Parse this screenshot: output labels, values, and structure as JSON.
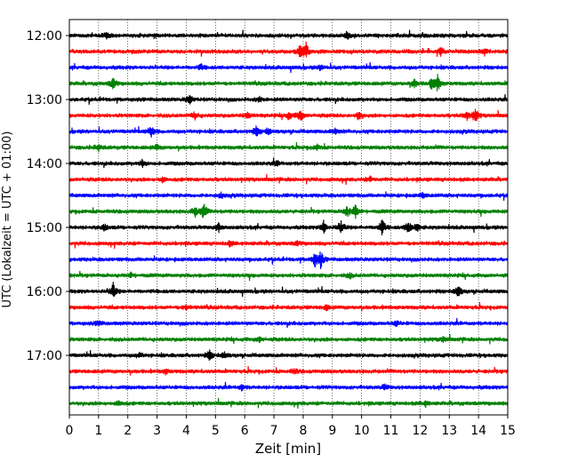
{
  "chart_data": {
    "type": "line",
    "title": "",
    "xlabel": "Zeit  [min]",
    "ylabel": "UTC (Lokalzeit = UTC + 01:00)",
    "xlim": [
      0,
      15
    ],
    "x_ticks": [
      "0",
      "1",
      "2",
      "3",
      "4",
      "5",
      "6",
      "7",
      "8",
      "9",
      "10",
      "11",
      "12",
      "13",
      "14",
      "15"
    ],
    "y_tick_labels": [
      "12:00",
      "13:00",
      "14:00",
      "15:00",
      "16:00",
      "17:00"
    ],
    "grid": "vertical dotted",
    "trace_interval_minutes": 15,
    "colors": [
      "#000000",
      "#ff0000",
      "#0000ff",
      "#008000"
    ],
    "series": [
      {
        "start": "12:00",
        "color": "#000000",
        "events": [
          [
            1.3,
            0.4
          ],
          [
            9.5,
            0.5
          ]
        ]
      },
      {
        "start": "12:15",
        "color": "#ff0000",
        "events": [
          [
            7.9,
            0.7
          ],
          [
            8.1,
            1.0
          ],
          [
            12.7,
            0.5
          ],
          [
            14.2,
            0.4
          ]
        ]
      },
      {
        "start": "12:30",
        "color": "#0000ff",
        "events": [
          [
            4.5,
            0.3
          ],
          [
            8.6,
            0.3
          ]
        ]
      },
      {
        "start": "12:45",
        "color": "#008000",
        "events": [
          [
            1.5,
            0.8
          ],
          [
            11.8,
            0.5
          ],
          [
            12.6,
            1.0
          ],
          [
            12.4,
            0.6
          ]
        ]
      },
      {
        "start": "13:00",
        "color": "#000000",
        "events": [
          [
            4.1,
            0.6
          ],
          [
            6.5,
            0.3
          ]
        ]
      },
      {
        "start": "13:15",
        "color": "#ff0000",
        "events": [
          [
            4.3,
            0.5
          ],
          [
            6.1,
            0.4
          ],
          [
            7.5,
            0.5
          ],
          [
            7.9,
            0.8
          ],
          [
            9.9,
            0.5
          ],
          [
            13.6,
            0.5
          ],
          [
            13.9,
            0.8
          ]
        ]
      },
      {
        "start": "13:30",
        "color": "#0000ff",
        "events": [
          [
            2.8,
            0.7
          ],
          [
            6.4,
            0.6
          ],
          [
            6.8,
            0.4
          ],
          [
            9.1,
            0.3
          ]
        ]
      },
      {
        "start": "13:45",
        "color": "#008000",
        "events": [
          [
            1.0,
            0.4
          ],
          [
            3.0,
            0.3
          ],
          [
            8.5,
            0.3
          ]
        ]
      },
      {
        "start": "14:00",
        "color": "#000000",
        "events": [
          [
            2.5,
            0.4
          ],
          [
            7.1,
            0.3
          ]
        ]
      },
      {
        "start": "14:15",
        "color": "#ff0000",
        "events": [
          [
            3.2,
            0.3
          ],
          [
            10.3,
            0.3
          ]
        ]
      },
      {
        "start": "14:30",
        "color": "#0000ff",
        "events": [
          [
            5.2,
            0.3
          ],
          [
            12.1,
            0.3
          ]
        ]
      },
      {
        "start": "14:45",
        "color": "#008000",
        "events": [
          [
            4.3,
            0.6
          ],
          [
            4.6,
            1.0
          ],
          [
            9.5,
            0.7
          ],
          [
            9.8,
            0.9
          ]
        ]
      },
      {
        "start": "15:00",
        "color": "#000000",
        "events": [
          [
            1.2,
            0.4
          ],
          [
            5.1,
            0.5
          ],
          [
            8.7,
            0.9
          ],
          [
            9.3,
            0.8
          ],
          [
            10.7,
            1.0
          ],
          [
            11.6,
            0.8
          ],
          [
            11.9,
            0.6
          ]
        ]
      },
      {
        "start": "15:15",
        "color": "#ff0000",
        "events": [
          [
            5.5,
            0.3
          ],
          [
            7.8,
            0.3
          ]
        ]
      },
      {
        "start": "15:30",
        "color": "#0000ff",
        "events": [
          [
            8.4,
            0.8
          ],
          [
            8.6,
            1.0
          ]
        ]
      },
      {
        "start": "15:45",
        "color": "#008000",
        "events": [
          [
            2.1,
            0.3
          ],
          [
            9.6,
            0.3
          ]
        ]
      },
      {
        "start": "16:00",
        "color": "#000000",
        "events": [
          [
            1.5,
            1.0
          ],
          [
            13.3,
            0.8
          ]
        ]
      },
      {
        "start": "16:15",
        "color": "#ff0000",
        "events": [
          [
            4.0,
            0.3
          ],
          [
            8.8,
            0.3
          ]
        ]
      },
      {
        "start": "16:30",
        "color": "#0000ff",
        "events": [
          [
            1.0,
            0.3
          ],
          [
            11.2,
            0.3
          ]
        ]
      },
      {
        "start": "16:45",
        "color": "#008000",
        "events": [
          [
            6.5,
            0.3
          ],
          [
            12.8,
            0.3
          ]
        ]
      },
      {
        "start": "17:00",
        "color": "#000000",
        "events": [
          [
            4.8,
            0.6
          ],
          [
            5.3,
            0.4
          ],
          [
            2.4,
            0.3
          ]
        ]
      },
      {
        "start": "17:15",
        "color": "#ff0000",
        "events": [
          [
            3.3,
            0.3
          ],
          [
            7.7,
            0.3
          ]
        ]
      },
      {
        "start": "17:30",
        "color": "#0000ff",
        "events": [
          [
            5.9,
            0.3
          ],
          [
            10.8,
            0.3
          ]
        ]
      },
      {
        "start": "17:45",
        "color": "#008000",
        "events": [
          [
            1.7,
            0.3
          ],
          [
            12.2,
            0.3
          ]
        ]
      }
    ]
  }
}
